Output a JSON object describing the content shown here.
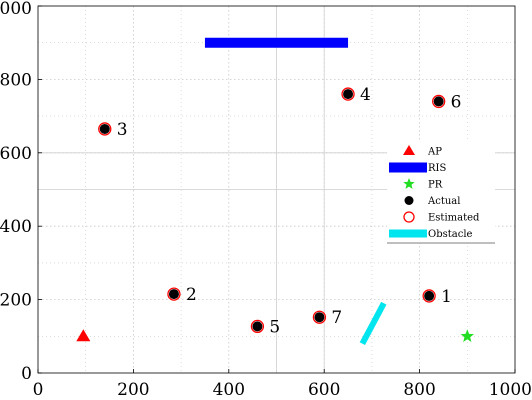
{
  "chart_data": {
    "type": "scatter",
    "xlim": [
      0,
      1000
    ],
    "ylim": [
      0,
      1000
    ],
    "xticks": [
      "0",
      "200",
      "400",
      "600",
      "800",
      "1000"
    ],
    "yticks": [
      "0",
      "200",
      "400",
      "600",
      "800",
      "1000"
    ],
    "grid": true,
    "legend_position": "right",
    "legend": [
      "AP",
      "RIS",
      "PR",
      "Actual",
      "Estimated",
      "Obstacle"
    ],
    "ap": {
      "x": 95,
      "y": 100
    },
    "pr": {
      "x": 900,
      "y": 100
    },
    "ris": {
      "x1": 350,
      "x2": 650,
      "y": 900
    },
    "obstacle": {
      "x1": 680,
      "y1": 80,
      "x2": 725,
      "y2": 190
    },
    "points": [
      {
        "label": "1",
        "x": 820,
        "y": 210
      },
      {
        "label": "2",
        "x": 285,
        "y": 215
      },
      {
        "label": "3",
        "x": 140,
        "y": 665
      },
      {
        "label": "4",
        "x": 650,
        "y": 760
      },
      {
        "label": "5",
        "x": 460,
        "y": 127
      },
      {
        "label": "6",
        "x": 840,
        "y": 740
      },
      {
        "label": "7",
        "x": 590,
        "y": 152
      }
    ],
    "colors": {
      "ap": "#ff0000",
      "ris": "#0000ff",
      "pr": "#22dd22",
      "actual": "#000000",
      "estimated": "#ff0000",
      "obstacle": "#00e5ee",
      "grid": "#c8c8c8"
    }
  }
}
